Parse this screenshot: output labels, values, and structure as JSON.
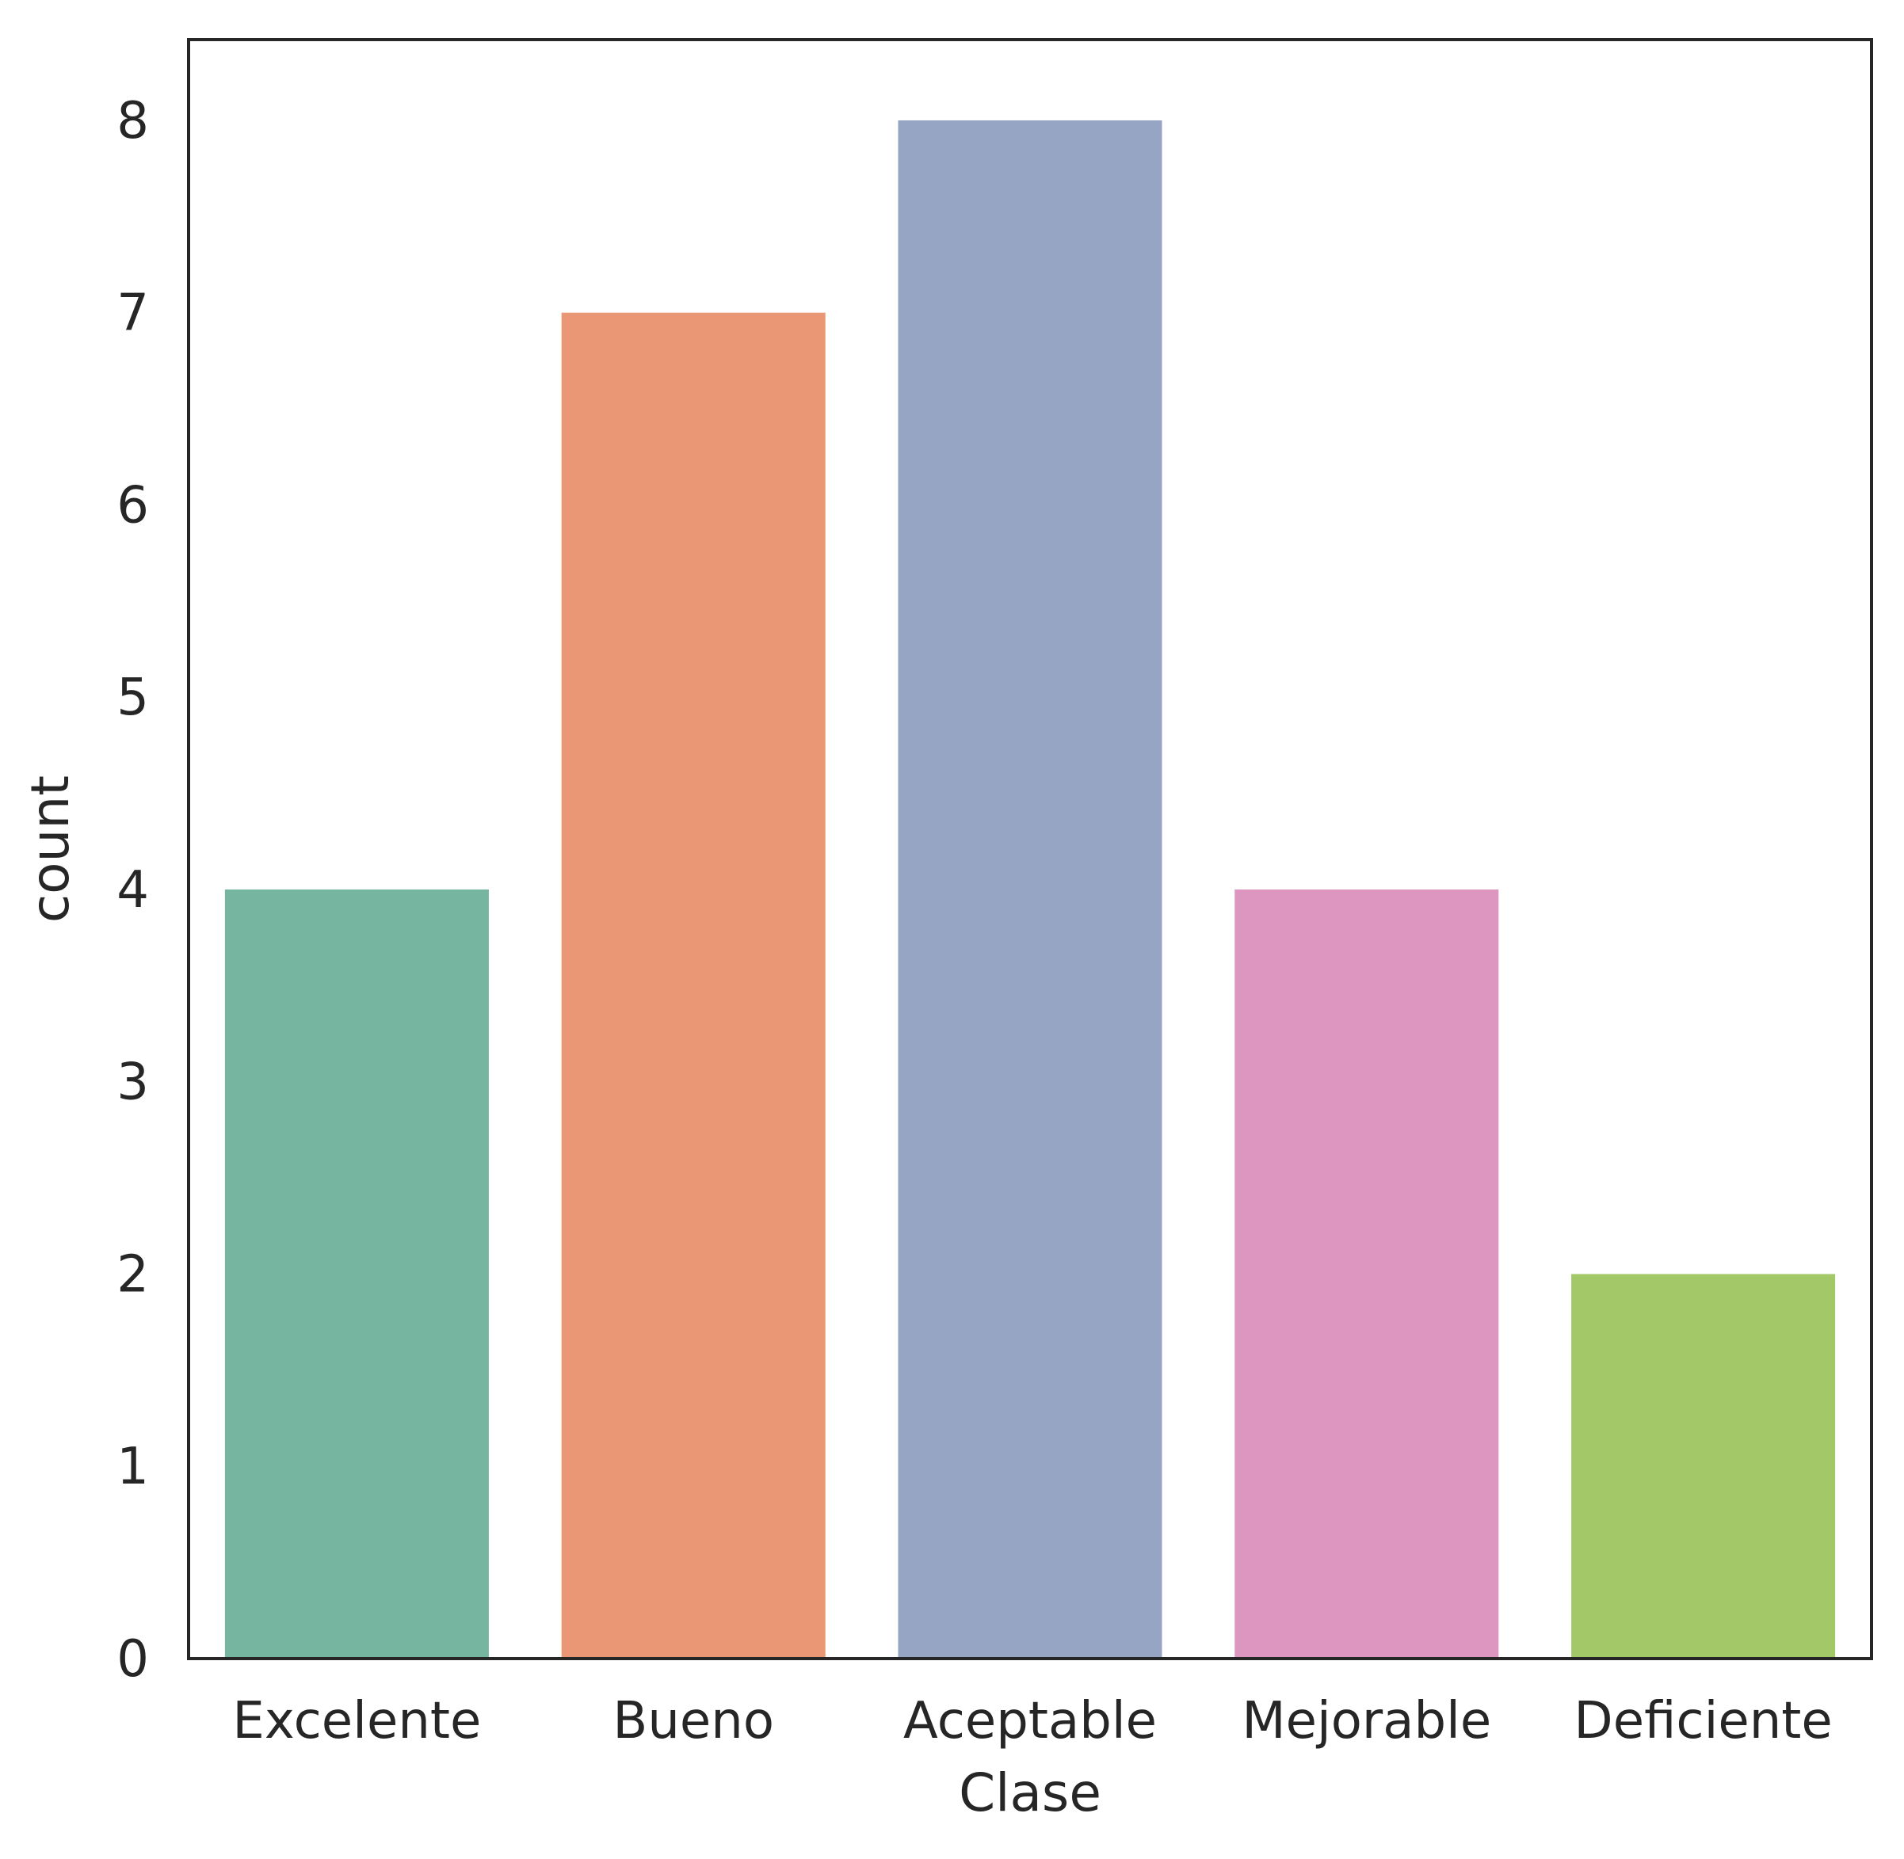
{
  "chart_data": {
    "type": "bar",
    "categories": [
      "Excelente",
      "Bueno",
      "Aceptable",
      "Mejorable",
      "Deficiente"
    ],
    "values": [
      4,
      7,
      8,
      4,
      2
    ],
    "colors": [
      "#76b5a0",
      "#e99775",
      "#95a5c3",
      "#dc96c0",
      "#a3c868"
    ],
    "xlabel": "Clase",
    "ylabel": "count",
    "ylim": [
      0,
      8.42
    ],
    "yticks": [
      "0",
      "1",
      "2",
      "3",
      "4",
      "5",
      "6",
      "7",
      "8"
    ],
    "grid": false,
    "legend": "none"
  }
}
